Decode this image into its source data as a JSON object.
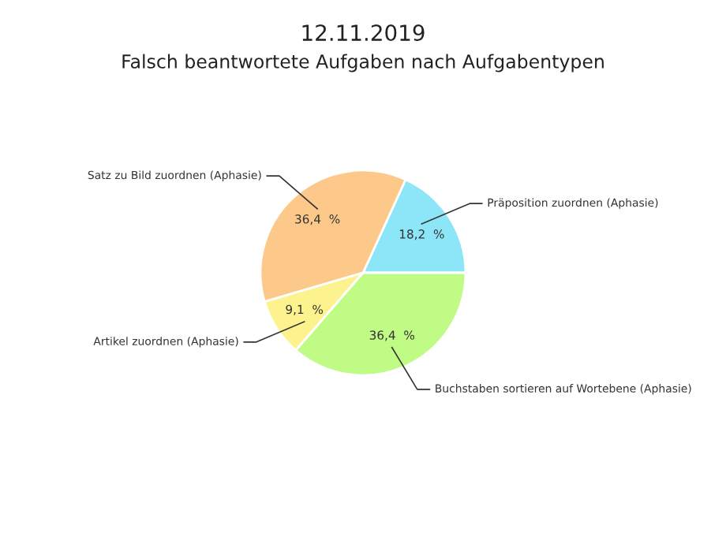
{
  "chart_data": {
    "type": "pie",
    "title": "12.11.2019",
    "subtitle": "Falsch beantwortete Aufgaben nach Aufgabentypen",
    "categories": [
      "Präposition zuordnen (Aphasie)",
      "Satz zu Bild zuordnen (Aphasie)",
      "Artikel zuordnen (Aphasie)",
      "Buchstaben sortieren auf Wortebene (Aphasie)"
    ],
    "values": [
      18.2,
      36.4,
      9.1,
      36.4
    ],
    "value_labels": [
      "18,2  %",
      "36,4  %",
      "9,1  %",
      "36,4  %"
    ],
    "colors": [
      "#8de5f8",
      "#fdc98a",
      "#fdf38e",
      "#c0fb86"
    ]
  }
}
